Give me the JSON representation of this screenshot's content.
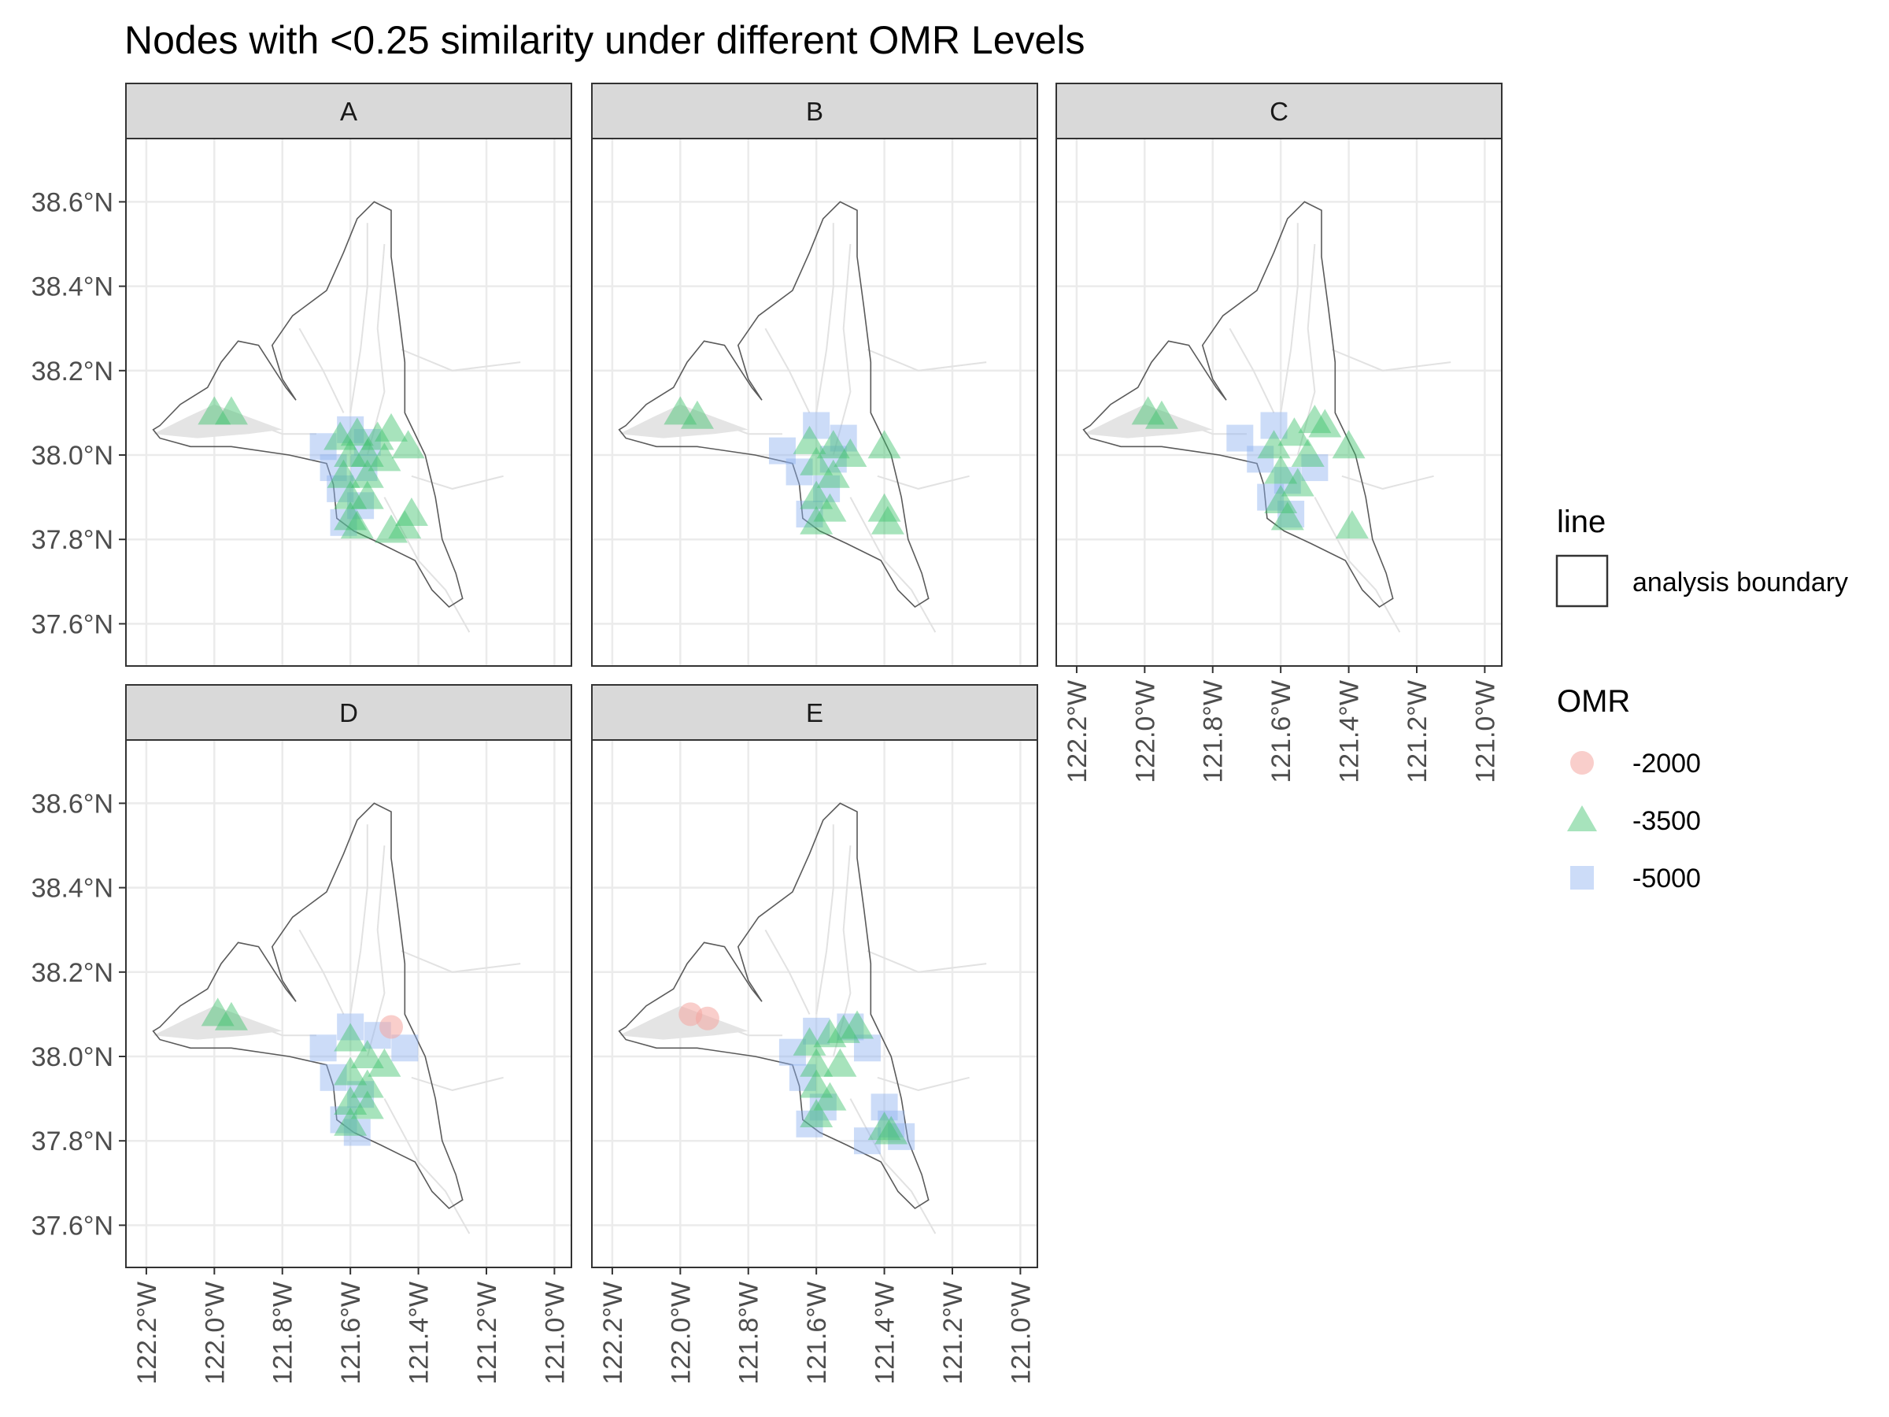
{
  "title": "Nodes with <0.25 similarity under different OMR Levels",
  "chart_data": {
    "type": "scatter",
    "map_type": "faceted point map",
    "facets": [
      "A",
      "B",
      "C",
      "D",
      "E"
    ],
    "x_ticks": [
      "122.2°W",
      "122.0°W",
      "121.8°W",
      "121.6°W",
      "121.4°W",
      "121.2°W",
      "121.0°W"
    ],
    "y_ticks": [
      "38.6°N",
      "38.4°N",
      "38.2°N",
      "38.0°N",
      "37.8°N",
      "37.6°N"
    ],
    "xlim": [
      -122.26,
      -120.95
    ],
    "ylim": [
      37.5,
      38.75
    ],
    "grid": true,
    "colors": {
      "-2000": "#f4a6a1",
      "-3500": "#3cc26b",
      "-5000": "#8fb2f0",
      "boundary": "#5a5a5a",
      "channels": "#e2e2e2",
      "strip": "#d9d9d9"
    },
    "legend": {
      "line_title": "line",
      "line_label": "analysis boundary",
      "omr_title": "OMR",
      "omr_items": [
        {
          "label": "-2000",
          "shape": "circle",
          "color": "#f4a6a1"
        },
        {
          "label": "-3500",
          "shape": "triangle",
          "color": "#3cc26b"
        },
        {
          "label": "-5000",
          "shape": "square",
          "color": "#8fb2f0"
        }
      ],
      "position": "right"
    },
    "boundary": [
      [
        -122.16,
        38.07
      ],
      [
        -122.1,
        38.12
      ],
      [
        -122.02,
        38.16
      ],
      [
        -121.98,
        38.22
      ],
      [
        -121.93,
        38.27
      ],
      [
        -121.87,
        38.26
      ],
      [
        -121.83,
        38.21
      ],
      [
        -121.79,
        38.16
      ],
      [
        -121.76,
        38.13
      ],
      [
        -121.8,
        38.18
      ],
      [
        -121.83,
        38.26
      ],
      [
        -121.77,
        38.33
      ],
      [
        -121.67,
        38.39
      ],
      [
        -121.62,
        38.48
      ],
      [
        -121.58,
        38.56
      ],
      [
        -121.53,
        38.6
      ],
      [
        -121.48,
        38.58
      ],
      [
        -121.48,
        38.47
      ],
      [
        -121.46,
        38.35
      ],
      [
        -121.44,
        38.22
      ],
      [
        -121.44,
        38.1
      ],
      [
        -121.38,
        38.0
      ],
      [
        -121.35,
        37.9
      ],
      [
        -121.33,
        37.8
      ],
      [
        -121.29,
        37.72
      ],
      [
        -121.27,
        37.66
      ],
      [
        -121.31,
        37.64
      ],
      [
        -121.36,
        37.68
      ],
      [
        -121.41,
        37.75
      ],
      [
        -121.51,
        37.79
      ],
      [
        -121.59,
        37.82
      ],
      [
        -121.64,
        37.85
      ],
      [
        -121.65,
        37.93
      ],
      [
        -121.67,
        37.98
      ],
      [
        -121.78,
        38.0
      ],
      [
        -121.95,
        38.02
      ],
      [
        -122.07,
        38.02
      ],
      [
        -122.16,
        38.04
      ],
      [
        -122.18,
        38.06
      ]
    ],
    "panels": [
      {
        "name": "A",
        "-2000": [],
        "-3500": [
          [
            -122.0,
            38.1
          ],
          [
            -121.95,
            38.1
          ],
          [
            -121.63,
            38.04
          ],
          [
            -121.58,
            38.05
          ],
          [
            -121.52,
            38.04
          ],
          [
            -121.48,
            38.06
          ],
          [
            -121.6,
            38.0
          ],
          [
            -121.55,
            38.0
          ],
          [
            -121.5,
            37.99
          ],
          [
            -121.43,
            38.02
          ],
          [
            -121.62,
            37.95
          ],
          [
            -121.55,
            37.95
          ],
          [
            -121.6,
            37.9
          ],
          [
            -121.55,
            37.9
          ],
          [
            -121.6,
            37.85
          ],
          [
            -121.58,
            37.83
          ],
          [
            -121.42,
            37.86
          ],
          [
            -121.44,
            37.83
          ],
          [
            -121.48,
            37.82
          ]
        ],
        "-5000": [
          [
            -121.68,
            38.02
          ],
          [
            -121.6,
            38.06
          ],
          [
            -121.65,
            37.97
          ],
          [
            -121.56,
            37.97
          ],
          [
            -121.63,
            37.92
          ],
          [
            -121.57,
            37.88
          ],
          [
            -121.62,
            37.84
          ],
          [
            -121.55,
            38.03
          ]
        ]
      },
      {
        "name": "B",
        "-2000": [],
        "-3500": [
          [
            -122.0,
            38.1
          ],
          [
            -121.95,
            38.09
          ],
          [
            -121.62,
            38.03
          ],
          [
            -121.55,
            38.02
          ],
          [
            -121.5,
            38.0
          ],
          [
            -121.6,
            37.98
          ],
          [
            -121.55,
            37.95
          ],
          [
            -121.6,
            37.9
          ],
          [
            -121.56,
            37.87
          ],
          [
            -121.6,
            37.84
          ],
          [
            -121.4,
            38.02
          ],
          [
            -121.4,
            37.87
          ],
          [
            -121.39,
            37.84
          ]
        ],
        "-5000": [
          [
            -121.7,
            38.01
          ],
          [
            -121.6,
            38.07
          ],
          [
            -121.52,
            38.04
          ],
          [
            -121.65,
            37.96
          ],
          [
            -121.57,
            37.92
          ],
          [
            -121.62,
            37.86
          ],
          [
            -121.55,
            37.99
          ]
        ]
      },
      {
        "name": "C",
        "-2000": [],
        "-3500": [
          [
            -121.99,
            38.1
          ],
          [
            -121.95,
            38.09
          ],
          [
            -121.62,
            38.02
          ],
          [
            -121.56,
            38.05
          ],
          [
            -121.5,
            38.08
          ],
          [
            -121.47,
            38.07
          ],
          [
            -121.52,
            38.0
          ],
          [
            -121.6,
            37.96
          ],
          [
            -121.55,
            37.93
          ],
          [
            -121.6,
            37.89
          ],
          [
            -121.58,
            37.85
          ],
          [
            -121.4,
            38.02
          ],
          [
            -121.39,
            37.83
          ]
        ],
        "-5000": [
          [
            -121.72,
            38.04
          ],
          [
            -121.62,
            38.07
          ],
          [
            -121.66,
            37.99
          ],
          [
            -121.58,
            37.94
          ],
          [
            -121.63,
            37.9
          ],
          [
            -121.57,
            37.86
          ],
          [
            -121.5,
            37.97
          ]
        ]
      },
      {
        "name": "D",
        "-2000": [
          [
            -121.48,
            38.07
          ]
        ],
        "-3500": [
          [
            -121.99,
            38.1
          ],
          [
            -121.95,
            38.09
          ],
          [
            -121.6,
            38.04
          ],
          [
            -121.55,
            38.0
          ],
          [
            -121.5,
            37.98
          ],
          [
            -121.6,
            37.96
          ],
          [
            -121.55,
            37.93
          ],
          [
            -121.6,
            37.89
          ],
          [
            -121.55,
            37.88
          ],
          [
            -121.6,
            37.84
          ]
        ],
        "-5000": [
          [
            -121.68,
            38.02
          ],
          [
            -121.6,
            38.07
          ],
          [
            -121.52,
            38.05
          ],
          [
            -121.65,
            37.95
          ],
          [
            -121.57,
            37.91
          ],
          [
            -121.62,
            37.85
          ],
          [
            -121.44,
            38.02
          ],
          [
            -121.58,
            37.82
          ]
        ]
      },
      {
        "name": "E",
        "-2000": [
          [
            -121.97,
            38.1
          ],
          [
            -121.92,
            38.09
          ]
        ],
        "-3500": [
          [
            -121.62,
            38.03
          ],
          [
            -121.56,
            38.05
          ],
          [
            -121.52,
            38.06
          ],
          [
            -121.48,
            38.07
          ],
          [
            -121.6,
            37.98
          ],
          [
            -121.53,
            37.98
          ],
          [
            -121.6,
            37.93
          ],
          [
            -121.56,
            37.9
          ],
          [
            -121.6,
            37.86
          ],
          [
            -121.4,
            37.83
          ],
          [
            -121.38,
            37.82
          ]
        ],
        "-5000": [
          [
            -121.67,
            38.01
          ],
          [
            -121.6,
            38.06
          ],
          [
            -121.5,
            38.07
          ],
          [
            -121.45,
            38.02
          ],
          [
            -121.64,
            37.95
          ],
          [
            -121.58,
            37.88
          ],
          [
            -121.62,
            37.84
          ],
          [
            -121.4,
            37.88
          ],
          [
            -121.45,
            37.8
          ],
          [
            -121.35,
            37.81
          ],
          [
            -121.38,
            37.84
          ]
        ]
      }
    ]
  }
}
